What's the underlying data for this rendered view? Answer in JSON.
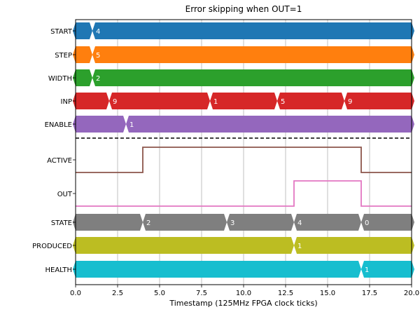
{
  "chart_data": {
    "type": "timing-diagram",
    "title": "Error skipping when OUT=1",
    "xlabel": "Timestamp (125MHz FPGA clock ticks)",
    "xlim": [
      0,
      20
    ],
    "xticks": [
      "0.0",
      "2.5",
      "5.0",
      "7.5",
      "10.0",
      "12.5",
      "15.0",
      "17.5",
      "20.0"
    ],
    "grid": true,
    "signals": [
      {
        "name": "START",
        "kind": "bus",
        "color": "#1f77b4",
        "changes": [
          {
            "x": 1,
            "label": "4"
          }
        ]
      },
      {
        "name": "STEP",
        "kind": "bus",
        "color": "#ff7f0e",
        "changes": [
          {
            "x": 1,
            "label": "5"
          }
        ]
      },
      {
        "name": "WIDTH",
        "kind": "bus",
        "color": "#2ca02c",
        "changes": [
          {
            "x": 1,
            "label": "2"
          }
        ]
      },
      {
        "name": "INP",
        "kind": "bus",
        "color": "#d62728",
        "changes": [
          {
            "x": 2,
            "label": "9"
          },
          {
            "x": 8,
            "label": "1"
          },
          {
            "x": 12,
            "label": "5"
          },
          {
            "x": 16,
            "label": "9"
          }
        ]
      },
      {
        "name": "ENABLE",
        "kind": "bus",
        "color": "#9467bd",
        "changes": [
          {
            "x": 3,
            "label": "1"
          }
        ]
      },
      {
        "name": "ACTIVE",
        "kind": "bit",
        "color": "#8c564b",
        "steps": [
          {
            "x": 0,
            "v": 0
          },
          {
            "x": 4,
            "v": 1
          },
          {
            "x": 17,
            "v": 0
          }
        ]
      },
      {
        "name": "OUT",
        "kind": "bit",
        "color": "#e377c2",
        "steps": [
          {
            "x": 0,
            "v": 0
          },
          {
            "x": 13,
            "v": 1
          },
          {
            "x": 17,
            "v": 0
          }
        ]
      },
      {
        "name": "STATE",
        "kind": "bus",
        "color": "#7f7f7f",
        "changes": [
          {
            "x": 4,
            "label": "2"
          },
          {
            "x": 9,
            "label": "3"
          },
          {
            "x": 13,
            "label": "4"
          },
          {
            "x": 17,
            "label": "0"
          }
        ]
      },
      {
        "name": "PRODUCED",
        "kind": "bus",
        "color": "#bcbd22",
        "changes": [
          {
            "x": 13,
            "label": "1"
          }
        ]
      },
      {
        "name": "HEALTH",
        "kind": "bus",
        "color": "#17becf",
        "changes": [
          {
            "x": 17,
            "label": "1"
          }
        ]
      }
    ],
    "separator_after": "ENABLE"
  }
}
